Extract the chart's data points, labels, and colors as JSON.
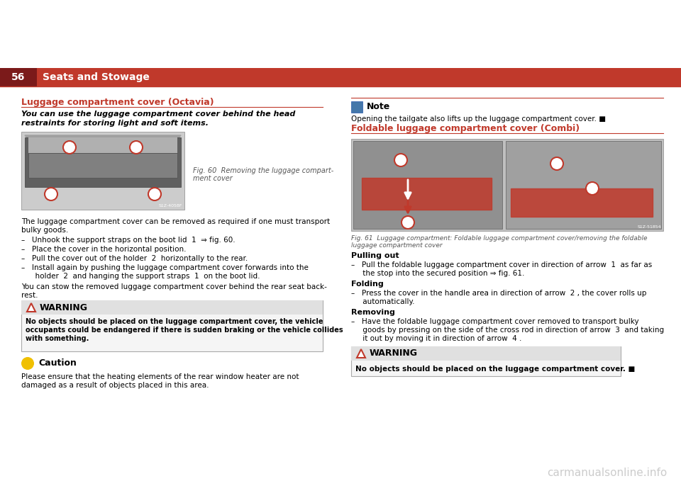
{
  "page_bg": "#ffffff",
  "header_bar_color": "#c0392b",
  "header_dark_color": "#7b1a1a",
  "header_page_num": "56",
  "header_title": "Seats and Stowage",
  "section1_title": "Luggage compartment cover (Octavia)",
  "section1_title_color": "#c0392b",
  "section1_intro_line1": "You can use the luggage compartment cover behind the head",
  "section1_intro_line2": "restraints for storing light and soft items.",
  "fig60_caption_line1": "Fig. 60  Removing the luggage compart-",
  "fig60_caption_line2": "ment cover",
  "body_text1_line1": "The luggage compartment cover can be removed as required if one must transport",
  "body_text1_line2": "bulky goods.",
  "bullet1": "–   Unhook the support straps on the boot lid  1  ⇒ fig. 60.",
  "bullet2": "–   Place the cover in the horizontal position.",
  "bullet3": "–   Pull the cover out of the holder  2  horizontally to the rear.",
  "bullet4a": "–   Install again by pushing the luggage compartment cover forwards into the",
  "bullet4b": "      holder  2  and hanging the support straps  1  on the boot lid.",
  "body_text2_line1": "You can stow the removed luggage compartment cover behind the rear seat back-",
  "body_text2_line2": "rest.",
  "warning1_title": "WARNING",
  "warning1_line1": "No objects should be placed on the luggage compartment cover, the vehicle",
  "warning1_line2": "occupants could be endangered if there is sudden braking or the vehicle collides",
  "warning1_line3": "with something.",
  "caution_title": "Caution",
  "caution_line1": "Please ensure that the heating elements of the rear window heater are not",
  "caution_line2": "damaged as a result of objects placed in this area.",
  "note_title": "Note",
  "note_text": "Opening the tailgate also lifts up the luggage compartment cover. ■",
  "section2_title": "Foldable luggage compartment cover (Combi)",
  "section2_title_color": "#c0392b",
  "fig61_caption_line1": "Fig. 61  Luggage compartment: Foldable luggage compartment cover/removing the foldable",
  "fig61_caption_line2": "luggage compartment cover",
  "pulling_out_title": "Pulling out",
  "pulling_out_line1": "–   Pull the foldable luggage compartment cover in direction of arrow  1  as far as",
  "pulling_out_line2": "     the stop into the secured position ⇒ fig. 61.",
  "folding_title": "Folding",
  "folding_line1": "–   Press the cover in the handle area in direction of arrow  2 , the cover rolls up",
  "folding_line2": "     automatically.",
  "removing_title": "Removing",
  "removing_line1": "–   Have the foldable luggage compartment cover removed to transport bulky",
  "removing_line2": "     goods by pressing on the side of the cross rod in direction of arrow  3  and taking",
  "removing_line3": "     it out by moving it in direction of arrow  4 .",
  "warning2_title": "WARNING",
  "warning2_text": "No objects should be placed on the luggage compartment cover. ■",
  "watermark_text": "carmanualsonline.info",
  "watermark_color": "#cccccc",
  "red": "#c0392b",
  "darkgray": "#444444",
  "medgray": "#666666",
  "lightgray": "#e8e8e8",
  "bordergray": "#aaaaaa",
  "captioncolor": "#555555"
}
